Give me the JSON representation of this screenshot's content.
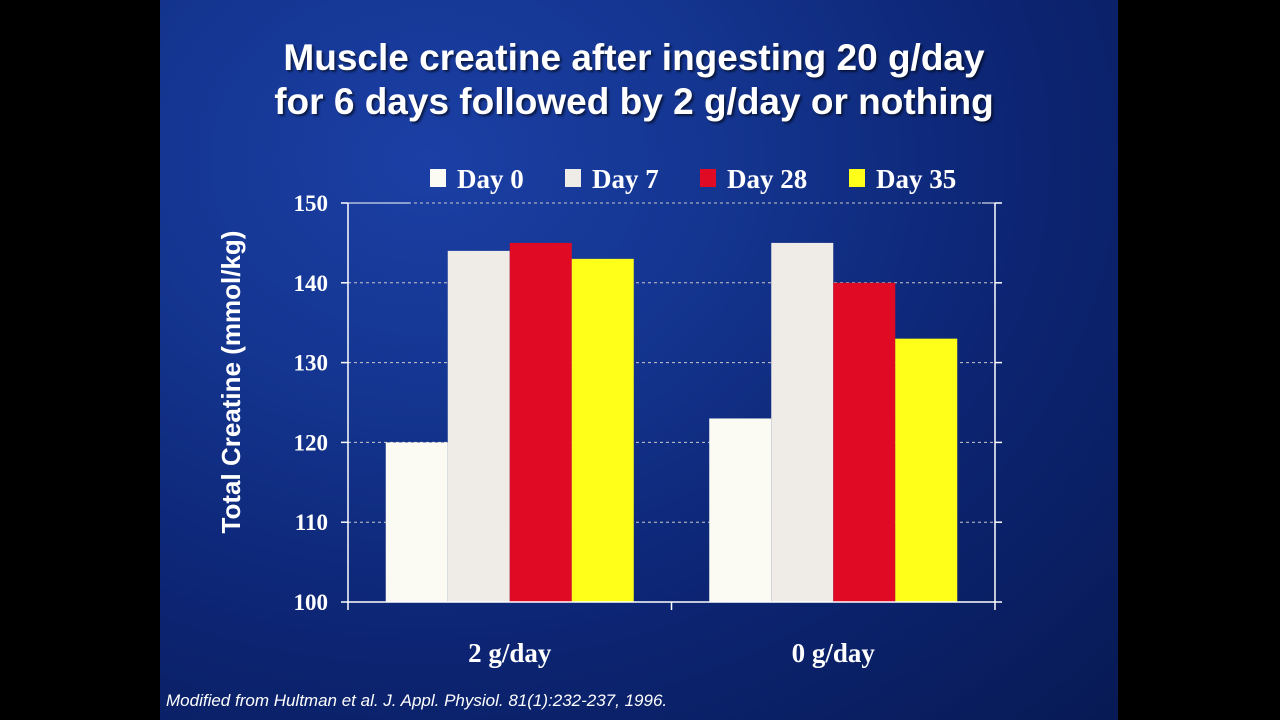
{
  "slide": {
    "title_line1": "Muscle creatine after ingesting 20 g/day",
    "title_line2": "for 6 days followed by 2 g/day or nothing",
    "footnote": "Modified from Hultman et al. J. Appl. Physiol. 81(1):232-237, 1996."
  },
  "colors": {
    "background": "#0c2472",
    "axis": "#ffffff",
    "gridline": "#c8c8c8"
  },
  "chart_data": {
    "type": "bar",
    "title": "Muscle creatine after ingesting 20 g/day for 6 days followed by 2 g/day or nothing",
    "xlabel": "",
    "ylabel": "Total Creatine (mmol/kg)",
    "ylim": [
      100,
      150
    ],
    "yticks": [
      100,
      110,
      120,
      130,
      140,
      150
    ],
    "grid": "horizontal dashed",
    "legend_position": "top",
    "categories": [
      "2 g/day",
      "0 g/day"
    ],
    "series": [
      {
        "name": "Day 0",
        "color": "#fbfbf3",
        "values": [
          120,
          123
        ]
      },
      {
        "name": "Day 7",
        "color": "#efebe7",
        "values": [
          144,
          145
        ]
      },
      {
        "name": "Day 28",
        "color": "#e00a24",
        "values": [
          145,
          140
        ]
      },
      {
        "name": "Day 35",
        "color": "#ffff19",
        "values": [
          143,
          133
        ]
      }
    ]
  }
}
